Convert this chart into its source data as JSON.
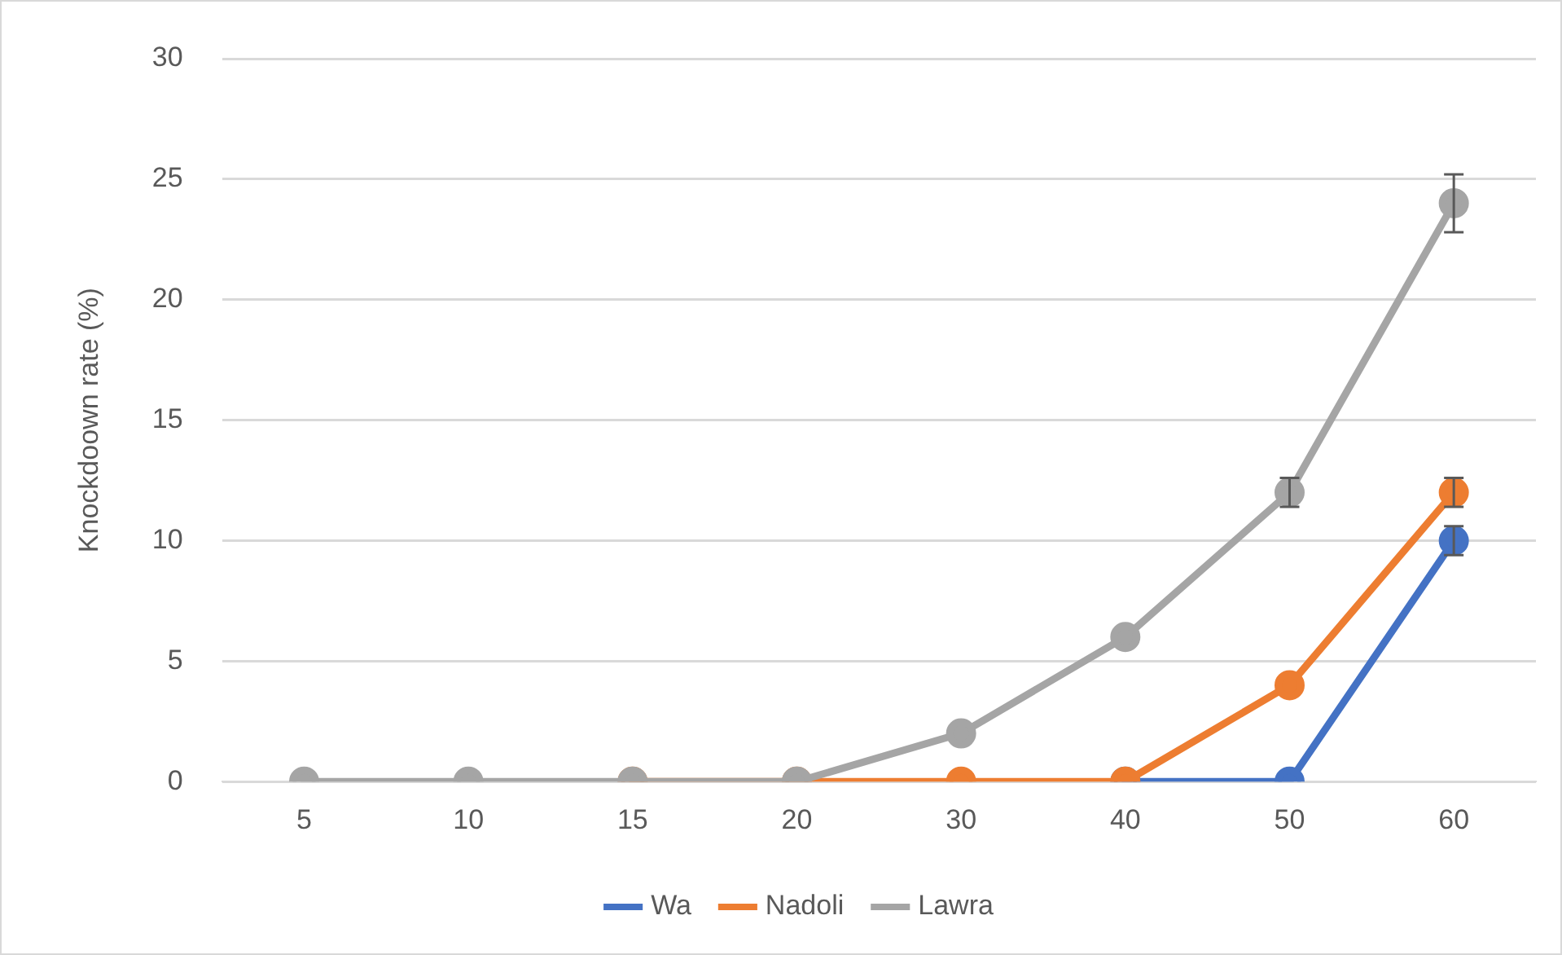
{
  "chart_data": {
    "type": "line",
    "ylabel": "Knockdoown rate (%)",
    "categories": [
      "5",
      "10",
      "15",
      "20",
      "30",
      "40",
      "50",
      "60"
    ],
    "ylim": [
      0,
      30
    ],
    "yticks": [
      0,
      5,
      10,
      15,
      20,
      25,
      30
    ],
    "grid": "y",
    "legend": "bottom",
    "marker": "circle",
    "line_style": "solid",
    "series": [
      {
        "name": "Wa",
        "color": "#4472c4",
        "values": [
          null,
          null,
          null,
          null,
          null,
          0,
          0,
          10
        ],
        "errors": [
          null,
          null,
          null,
          null,
          null,
          null,
          null,
          0.6
        ]
      },
      {
        "name": "Nadoli",
        "color": "#ed7d31",
        "values": [
          null,
          null,
          0,
          0,
          0,
          0,
          4,
          12
        ],
        "errors": [
          null,
          null,
          null,
          null,
          null,
          null,
          null,
          0.6
        ]
      },
      {
        "name": "Lawra",
        "color": "#a5a5a5",
        "values": [
          0,
          0,
          0,
          0,
          2,
          6,
          12,
          24
        ],
        "errors": [
          null,
          null,
          null,
          null,
          null,
          null,
          0.6,
          1.2
        ]
      }
    ]
  }
}
